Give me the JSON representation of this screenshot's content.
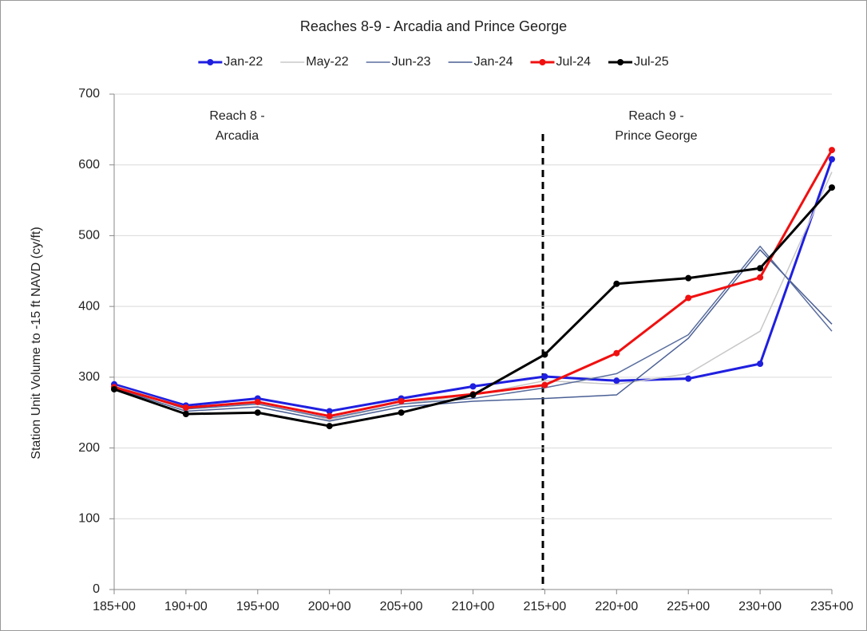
{
  "chart_data": {
    "type": "line",
    "title": "Reaches 8-9 - Arcadia and Prince George",
    "y_label": "Station Unit Volume to -15 ft NAVD (cy/ft)",
    "categories": [
      "185+00",
      "190+00",
      "195+00",
      "200+00",
      "205+00",
      "210+00",
      "215+00",
      "220+00",
      "225+00",
      "230+00",
      "235+00"
    ],
    "series": [
      {
        "name": "Jan-22",
        "color": "#1f1fe0",
        "markers": true,
        "values": [
          290,
          260,
          270,
          252,
          270,
          287,
          301,
          295,
          298,
          319,
          608
        ]
      },
      {
        "name": "May-22",
        "color": "#c8c8c8",
        "markers": false,
        "values": [
          288,
          258,
          263,
          240,
          262,
          275,
          295,
          290,
          305,
          365,
          590
        ]
      },
      {
        "name": "Jun-23",
        "color": "#5a6e9e",
        "markers": false,
        "values": [
          287,
          255,
          262,
          242,
          262,
          270,
          285,
          305,
          360,
          485,
          365
        ]
      },
      {
        "name": "Jan-24",
        "color": "#4a5f94",
        "markers": false,
        "values": [
          285,
          252,
          258,
          238,
          258,
          266,
          270,
          275,
          355,
          480,
          375
        ]
      },
      {
        "name": "Jul-24",
        "color": "#f01010",
        "markers": true,
        "values": [
          286,
          257,
          265,
          245,
          266,
          276,
          289,
          334,
          412,
          441,
          621
        ]
      },
      {
        "name": "Jul-25",
        "color": "#000000",
        "markers": true,
        "values": [
          283,
          248,
          250,
          231,
          250,
          275,
          332,
          432,
          440,
          454,
          568
        ]
      }
    ],
    "annotations": [
      [
        "Reach 8 -",
        "Arcadia"
      ],
      [
        "Reach 9 -",
        "Prince George"
      ]
    ],
    "ylim": [
      0,
      700
    ],
    "yticks": [
      0,
      100,
      200,
      300,
      400,
      500,
      600,
      700
    ],
    "grid": true
  }
}
